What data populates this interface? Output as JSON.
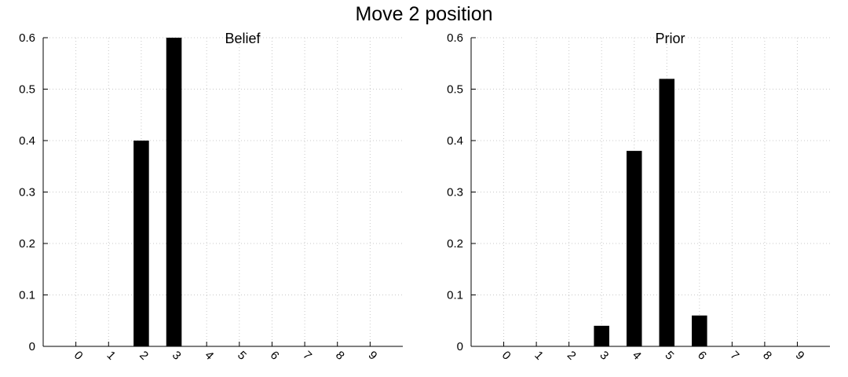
{
  "suptitle": "Move 2 position",
  "chart_data": [
    {
      "type": "bar",
      "title": "Belief",
      "categories": [
        "0",
        "1",
        "2",
        "3",
        "4",
        "5",
        "6",
        "7",
        "8",
        "9"
      ],
      "values": [
        0,
        0,
        0.4,
        0.6,
        0,
        0,
        0,
        0,
        0,
        0
      ],
      "xlabel": "",
      "ylabel": "",
      "ylim": [
        0,
        0.6
      ],
      "yticks": [
        "0",
        "0.1",
        "0.2",
        "0.3",
        "0.4",
        "0.5",
        "0.6"
      ],
      "grid": true,
      "bar_color": "#000000"
    },
    {
      "type": "bar",
      "title": "Prior",
      "categories": [
        "0",
        "1",
        "2",
        "3",
        "4",
        "5",
        "6",
        "7",
        "8",
        "9"
      ],
      "values": [
        0,
        0,
        0,
        0.04,
        0.38,
        0.52,
        0.06,
        0,
        0,
        0
      ],
      "xlabel": "",
      "ylabel": "",
      "ylim": [
        0,
        0.6
      ],
      "yticks": [
        "0",
        "0.1",
        "0.2",
        "0.3",
        "0.4",
        "0.5",
        "0.6"
      ],
      "grid": true,
      "bar_color": "#000000"
    }
  ]
}
